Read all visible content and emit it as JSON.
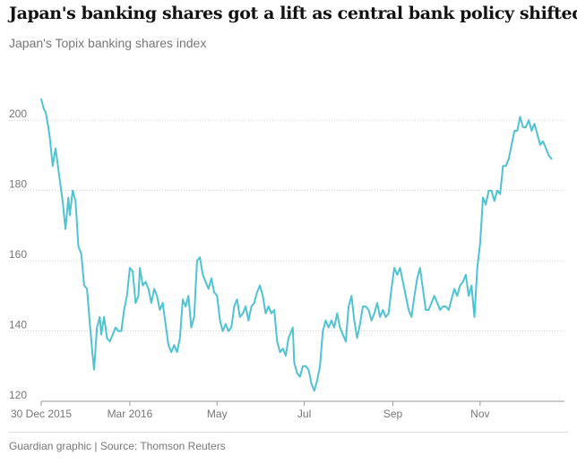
{
  "header": {
    "title": "Japan's banking shares got a lift as central bank policy shifted",
    "subtitle": "Japan's Topix banking shares index"
  },
  "footer": {
    "source": "Guardian graphic | Source: Thomson Reuters"
  },
  "colors": {
    "line": "#4fc3d1",
    "grid": "#cfcfcf",
    "axis": "#999999"
  },
  "chart_data": {
    "type": "line",
    "title": "Japan's banking shares got a lift as central bank policy shifted",
    "subtitle": "Japan's Topix banking shares index",
    "xlabel": "",
    "ylabel": "",
    "xlim": [
      "2015-12-30",
      "2016-12-30"
    ],
    "ylim": [
      120,
      210
    ],
    "y_ticks": [
      120,
      140,
      160,
      180,
      200
    ],
    "x_ticks": [
      {
        "date": "2015-12-30",
        "label": "30 Dec 2015"
      },
      {
        "date": "2016-03-01",
        "label": "Mar 2016"
      },
      {
        "date": "2016-05-01",
        "label": "May"
      },
      {
        "date": "2016-07-01",
        "label": "Jul"
      },
      {
        "date": "2016-09-01",
        "label": "Sep"
      },
      {
        "date": "2016-11-01",
        "label": "Nov"
      }
    ],
    "grid": "horizontal-dotted",
    "legend": "none",
    "series": [
      {
        "points": [
          [
            "2015-12-30",
            206
          ],
          [
            "2016-01-01",
            203
          ],
          [
            "2016-01-02",
            202.5
          ],
          [
            "2016-01-04",
            198
          ],
          [
            "2016-01-05",
            195
          ],
          [
            "2016-01-07",
            187
          ],
          [
            "2016-01-09",
            192
          ],
          [
            "2016-01-10",
            189
          ],
          [
            "2016-01-12",
            183
          ],
          [
            "2016-01-14",
            177
          ],
          [
            "2016-01-16",
            169
          ],
          [
            "2016-01-18",
            178
          ],
          [
            "2016-01-19",
            173
          ],
          [
            "2016-01-21",
            180
          ],
          [
            "2016-01-23",
            177
          ],
          [
            "2016-01-25",
            164
          ],
          [
            "2016-01-27",
            162
          ],
          [
            "2016-01-29",
            153
          ],
          [
            "2016-01-31",
            152
          ],
          [
            "2016-02-02",
            142
          ],
          [
            "2016-02-04",
            133
          ],
          [
            "2016-02-05",
            129
          ],
          [
            "2016-02-07",
            141
          ],
          [
            "2016-02-09",
            144
          ],
          [
            "2016-02-10",
            139
          ],
          [
            "2016-02-12",
            144
          ],
          [
            "2016-02-14",
            138
          ],
          [
            "2016-02-16",
            137
          ],
          [
            "2016-02-18",
            139
          ],
          [
            "2016-02-20",
            141
          ],
          [
            "2016-02-22",
            140
          ],
          [
            "2016-02-24",
            140
          ],
          [
            "2016-02-26",
            146
          ],
          [
            "2016-02-28",
            150
          ],
          [
            "2016-03-01",
            158
          ],
          [
            "2016-03-03",
            157
          ],
          [
            "2016-03-05",
            148
          ],
          [
            "2016-03-07",
            150
          ],
          [
            "2016-03-08",
            158
          ],
          [
            "2016-03-10",
            153
          ],
          [
            "2016-03-12",
            154
          ],
          [
            "2016-03-14",
            152
          ],
          [
            "2016-03-16",
            148
          ],
          [
            "2016-03-18",
            152
          ],
          [
            "2016-03-20",
            150
          ],
          [
            "2016-03-22",
            146
          ],
          [
            "2016-03-24",
            148
          ],
          [
            "2016-03-26",
            142
          ],
          [
            "2016-03-28",
            136
          ],
          [
            "2016-03-30",
            134
          ],
          [
            "2016-04-01",
            136
          ],
          [
            "2016-04-03",
            134
          ],
          [
            "2016-04-05",
            138
          ],
          [
            "2016-04-07",
            149
          ],
          [
            "2016-04-09",
            147
          ],
          [
            "2016-04-11",
            150
          ],
          [
            "2016-04-13",
            141
          ],
          [
            "2016-04-15",
            144
          ],
          [
            "2016-04-17",
            160
          ],
          [
            "2016-04-19",
            161
          ],
          [
            "2016-04-21",
            156
          ],
          [
            "2016-04-23",
            154
          ],
          [
            "2016-04-25",
            152
          ],
          [
            "2016-04-27",
            155
          ],
          [
            "2016-04-29",
            151
          ],
          [
            "2016-05-01",
            150
          ],
          [
            "2016-05-03",
            143
          ],
          [
            "2016-05-05",
            140
          ],
          [
            "2016-05-07",
            142
          ],
          [
            "2016-05-09",
            140
          ],
          [
            "2016-05-11",
            141
          ],
          [
            "2016-05-13",
            147
          ],
          [
            "2016-05-15",
            149
          ],
          [
            "2016-05-17",
            144
          ],
          [
            "2016-05-19",
            145
          ],
          [
            "2016-05-21",
            147
          ],
          [
            "2016-05-23",
            143
          ],
          [
            "2016-05-25",
            147
          ],
          [
            "2016-05-27",
            148
          ],
          [
            "2016-05-29",
            151
          ],
          [
            "2016-05-31",
            153
          ],
          [
            "2016-06-02",
            150
          ],
          [
            "2016-06-04",
            145
          ],
          [
            "2016-06-06",
            147
          ],
          [
            "2016-06-08",
            145
          ],
          [
            "2016-06-10",
            146
          ],
          [
            "2016-06-12",
            137
          ],
          [
            "2016-06-14",
            134
          ],
          [
            "2016-06-16",
            135
          ],
          [
            "2016-06-18",
            133
          ],
          [
            "2016-06-20",
            138
          ],
          [
            "2016-06-22",
            140
          ],
          [
            "2016-06-23",
            141
          ],
          [
            "2016-06-24",
            131
          ],
          [
            "2016-06-26",
            128
          ],
          [
            "2016-06-28",
            127
          ],
          [
            "2016-06-30",
            130
          ],
          [
            "2016-07-02",
            130
          ],
          [
            "2016-07-04",
            129
          ],
          [
            "2016-07-06",
            125
          ],
          [
            "2016-07-08",
            123
          ],
          [
            "2016-07-10",
            126
          ],
          [
            "2016-07-12",
            130
          ],
          [
            "2016-07-14",
            140
          ],
          [
            "2016-07-16",
            143
          ],
          [
            "2016-07-18",
            141
          ],
          [
            "2016-07-20",
            143
          ],
          [
            "2016-07-22",
            141
          ],
          [
            "2016-07-24",
            145
          ],
          [
            "2016-07-26",
            141
          ],
          [
            "2016-07-28",
            139
          ],
          [
            "2016-07-30",
            137
          ],
          [
            "2016-08-01",
            147
          ],
          [
            "2016-08-03",
            150
          ],
          [
            "2016-08-05",
            143
          ],
          [
            "2016-08-07",
            138
          ],
          [
            "2016-08-09",
            142
          ],
          [
            "2016-08-11",
            147
          ],
          [
            "2016-08-13",
            147
          ],
          [
            "2016-08-15",
            146
          ],
          [
            "2016-08-17",
            143
          ],
          [
            "2016-08-19",
            145
          ],
          [
            "2016-08-21",
            148
          ],
          [
            "2016-08-23",
            144
          ],
          [
            "2016-08-25",
            146
          ],
          [
            "2016-08-27",
            144
          ],
          [
            "2016-08-29",
            145
          ],
          [
            "2016-08-31",
            152
          ],
          [
            "2016-09-02",
            158
          ],
          [
            "2016-09-04",
            156
          ],
          [
            "2016-09-06",
            158
          ],
          [
            "2016-09-08",
            154
          ],
          [
            "2016-09-10",
            150
          ],
          [
            "2016-09-12",
            146
          ],
          [
            "2016-09-14",
            144
          ],
          [
            "2016-09-16",
            150
          ],
          [
            "2016-09-18",
            155
          ],
          [
            "2016-09-20",
            158
          ],
          [
            "2016-09-22",
            152
          ],
          [
            "2016-09-24",
            146
          ],
          [
            "2016-09-26",
            146
          ],
          [
            "2016-09-28",
            148
          ],
          [
            "2016-09-30",
            150
          ],
          [
            "2016-10-02",
            148
          ],
          [
            "2016-10-04",
            146
          ],
          [
            "2016-10-06",
            147
          ],
          [
            "2016-10-08",
            147
          ],
          [
            "2016-10-10",
            146
          ],
          [
            "2016-10-12",
            149
          ],
          [
            "2016-10-14",
            152
          ],
          [
            "2016-10-16",
            150
          ],
          [
            "2016-10-18",
            153
          ],
          [
            "2016-10-20",
            154
          ],
          [
            "2016-10-22",
            156
          ],
          [
            "2016-10-24",
            150
          ],
          [
            "2016-10-26",
            153
          ],
          [
            "2016-10-28",
            144
          ],
          [
            "2016-10-30",
            158
          ],
          [
            "2016-11-01",
            165
          ],
          [
            "2016-11-03",
            178
          ],
          [
            "2016-11-05",
            176
          ],
          [
            "2016-11-07",
            180
          ],
          [
            "2016-11-09",
            180
          ],
          [
            "2016-11-11",
            177
          ],
          [
            "2016-11-13",
            180
          ],
          [
            "2016-11-15",
            179
          ],
          [
            "2016-11-17",
            187
          ],
          [
            "2016-11-19",
            187
          ],
          [
            "2016-11-21",
            189
          ],
          [
            "2016-11-23",
            193
          ],
          [
            "2016-11-25",
            197
          ],
          [
            "2016-11-27",
            197
          ],
          [
            "2016-11-29",
            201
          ],
          [
            "2016-12-01",
            198
          ],
          [
            "2016-12-03",
            198
          ],
          [
            "2016-12-05",
            200
          ],
          [
            "2016-12-07",
            197
          ],
          [
            "2016-12-09",
            199
          ],
          [
            "2016-12-11",
            196
          ],
          [
            "2016-12-13",
            193
          ],
          [
            "2016-12-15",
            194
          ],
          [
            "2016-12-17",
            192
          ],
          [
            "2016-12-19",
            190
          ],
          [
            "2016-12-21",
            189
          ]
        ]
      }
    ]
  }
}
